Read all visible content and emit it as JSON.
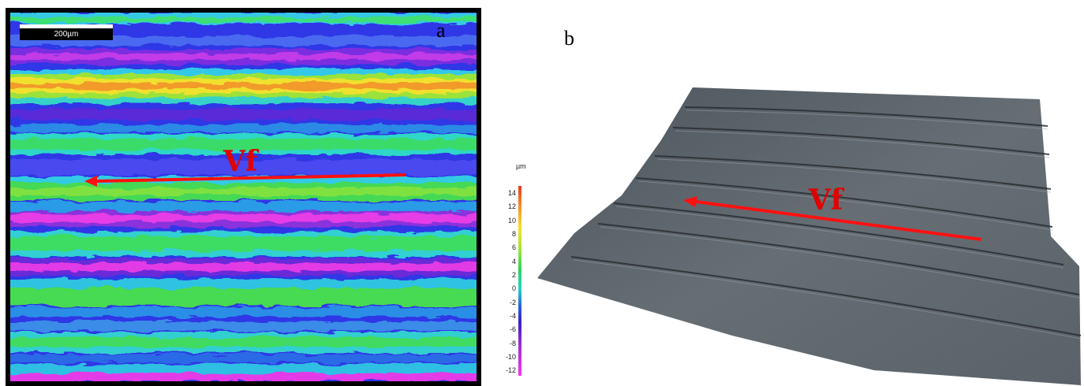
{
  "panel_a": {
    "letter": "a",
    "scale_bar_label": "200µm",
    "arrow_label": "Vf"
  },
  "legend": {
    "unit": "µm",
    "ticks": [
      "14",
      "12",
      "10",
      "8",
      "6",
      "4",
      "2",
      "0",
      "-2",
      "-4",
      "-6",
      "-8",
      "-10",
      "-12"
    ]
  },
  "panel_b": {
    "letter": "b",
    "arrow_label": "Vf"
  },
  "colors": {
    "arrow": "#ff1010",
    "surface": "#55595c"
  }
}
